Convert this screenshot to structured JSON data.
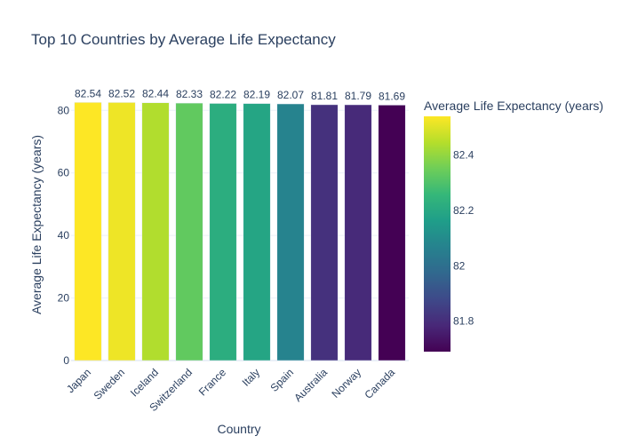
{
  "chart_data": {
    "type": "bar",
    "title": "Top 10 Countries by Average Life Expectancy",
    "xlabel": "Country",
    "ylabel": "Average Life Expectancy (years)",
    "categories": [
      "Japan",
      "Sweden",
      "Iceland",
      "Switzerland",
      "France",
      "Italy",
      "Spain",
      "Australia",
      "Norway",
      "Canada"
    ],
    "values": [
      82.54,
      82.52,
      82.44,
      82.33,
      82.22,
      82.19,
      82.07,
      81.81,
      81.79,
      81.69
    ],
    "value_labels": [
      "82.54",
      "82.52",
      "82.44",
      "82.33",
      "82.22",
      "82.19",
      "82.07",
      "81.81",
      "81.79",
      "81.69"
    ],
    "ylim": [
      0,
      86.9
    ],
    "yticks": [
      0,
      20,
      40,
      60,
      80
    ],
    "grid": true,
    "colorscale": "Viridis",
    "colorbar": {
      "title": "Average Life Expectancy (years)",
      "range": [
        81.69,
        82.54
      ],
      "ticks": [
        81.8,
        82,
        82.2,
        82.4
      ],
      "tick_labels": [
        "81.8",
        "82",
        "82.2",
        "82.4"
      ]
    }
  }
}
